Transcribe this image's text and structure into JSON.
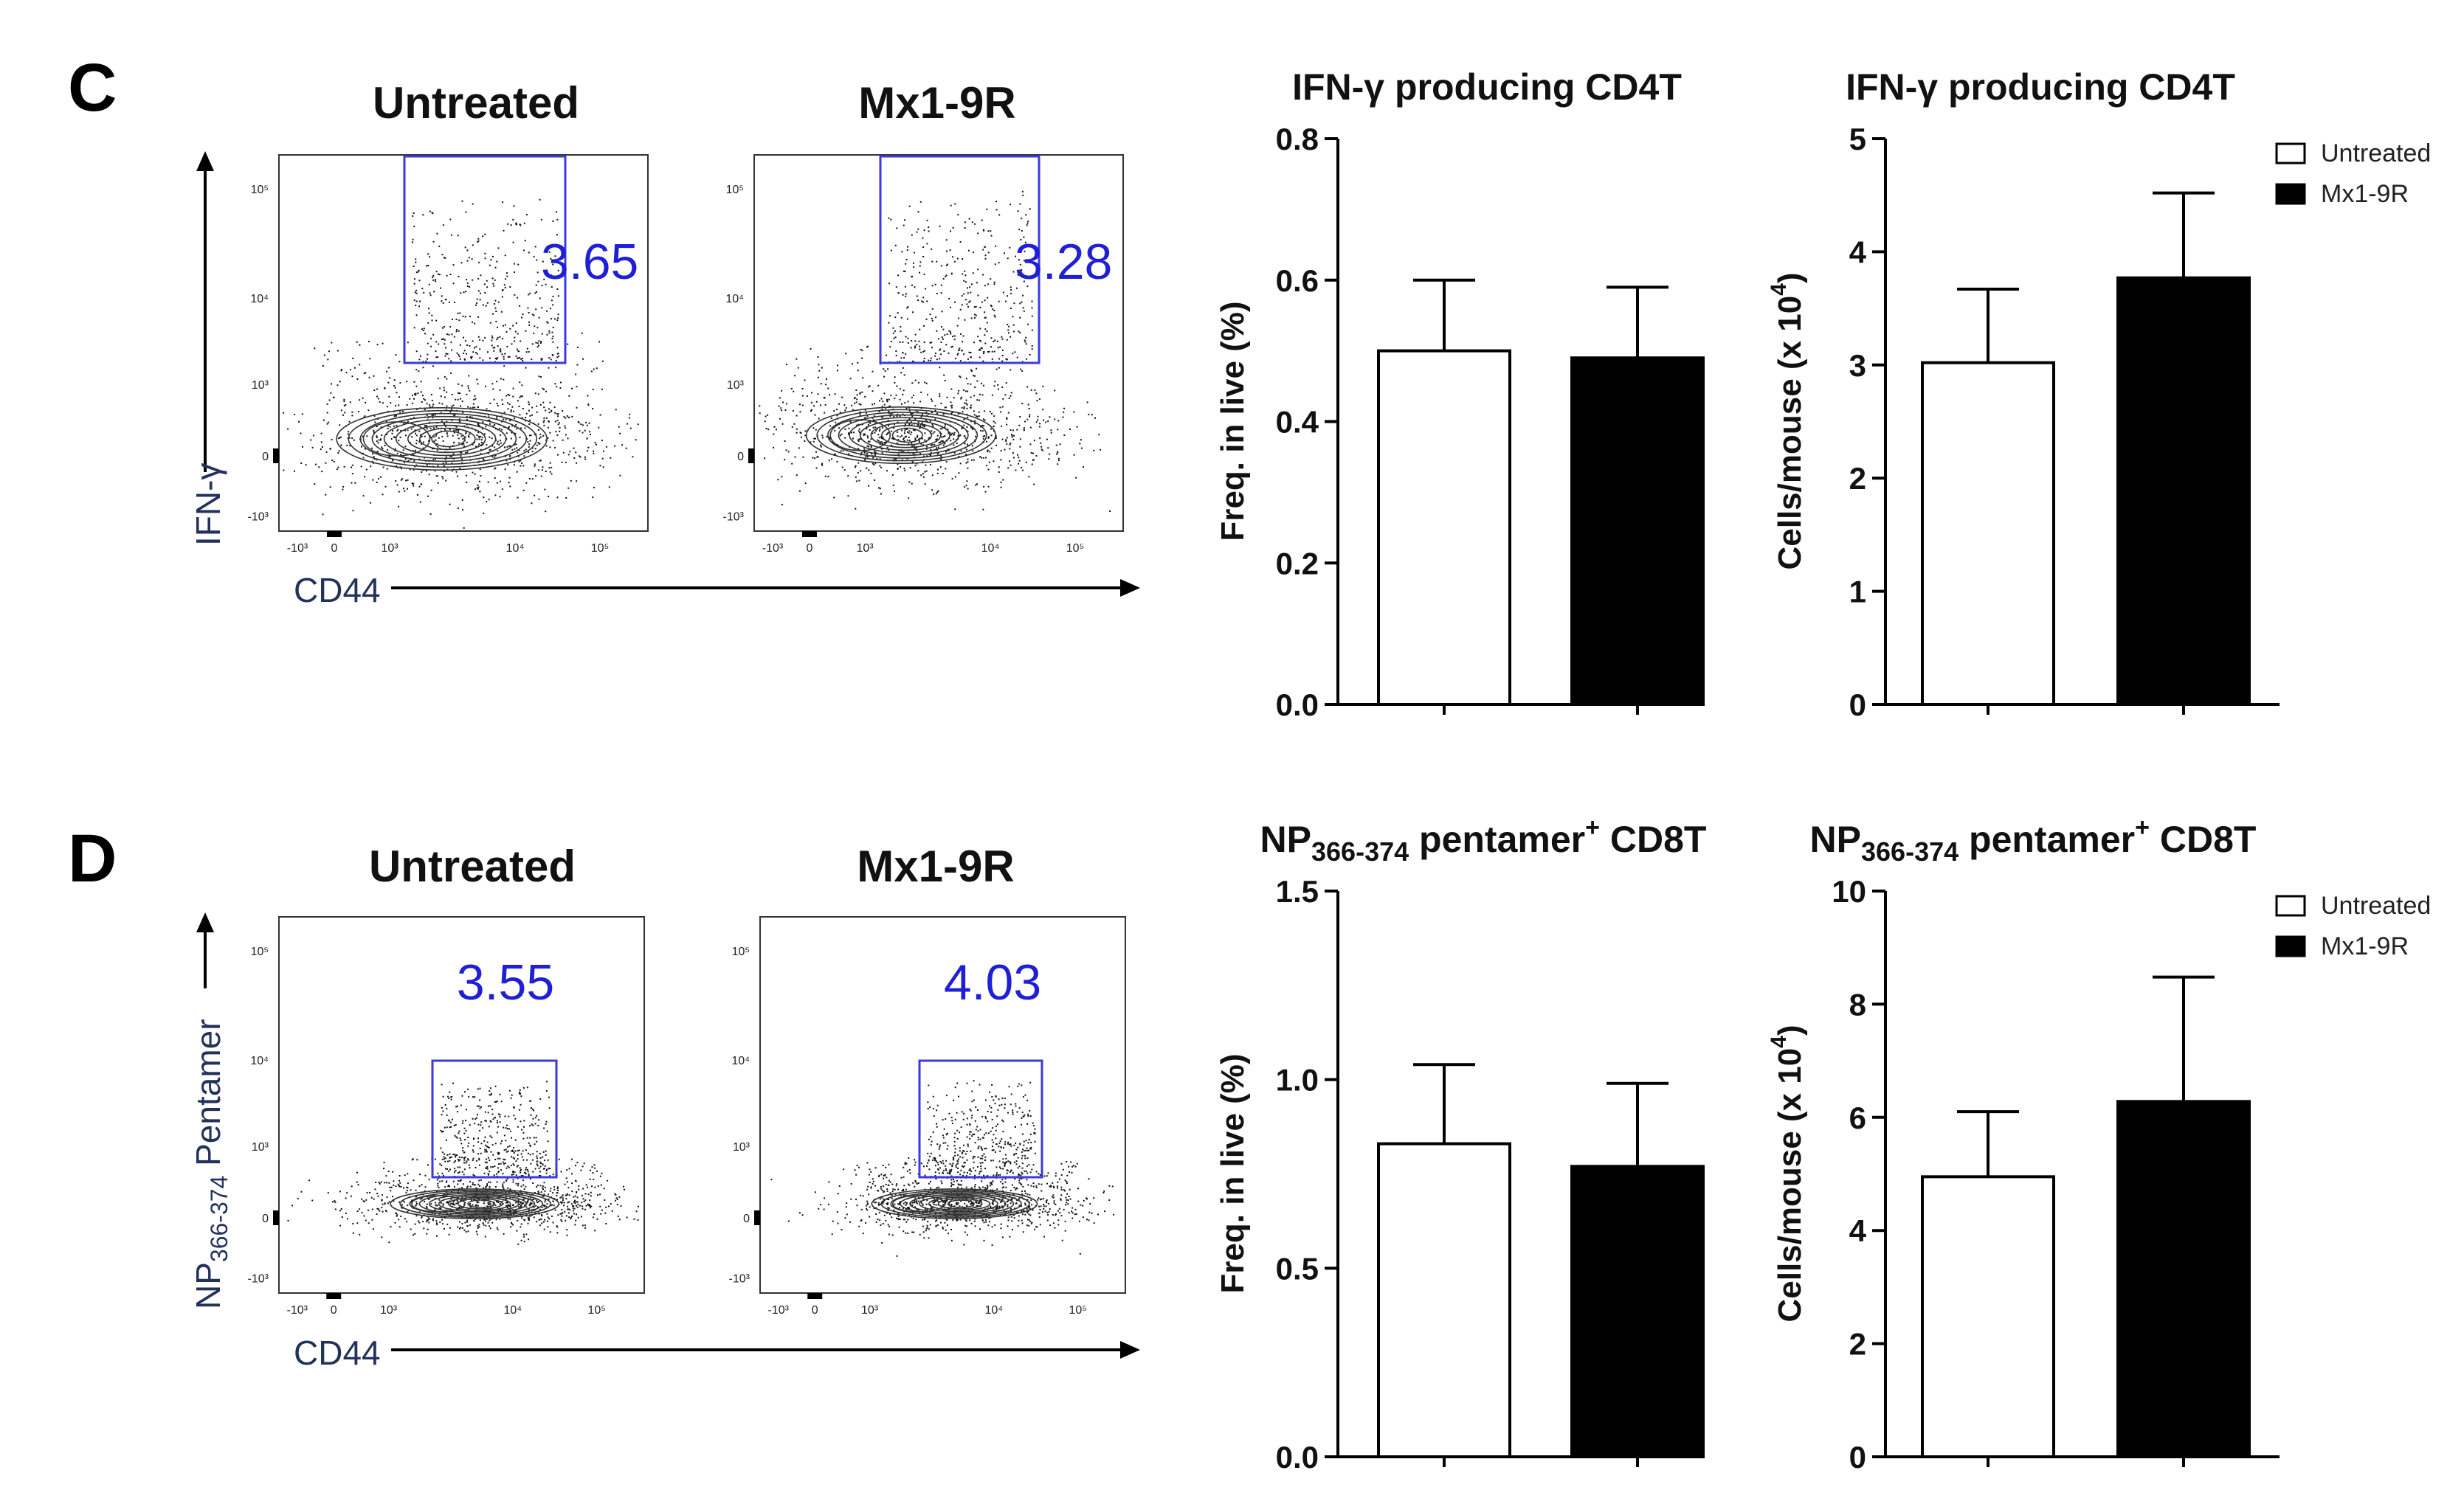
{
  "panels": [
    {
      "letter": "C",
      "flow": {
        "y_axis_label": "IFN-γ",
        "y_axis_label_parts": [
          {
            "text": "IFN-γ",
            "sub": false
          }
        ],
        "x_axis_label": "CD44",
        "tick_labels_x": [
          "-10³",
          "0",
          "10³",
          "10⁴",
          "10⁵"
        ],
        "tick_labels_y": [
          "-10³",
          "0",
          "10³",
          "10⁴",
          "10⁵"
        ],
        "plots": [
          {
            "title": "Untreated",
            "gate_value": "3.65"
          },
          {
            "title": "Mx1-9R",
            "gate_value": "3.28"
          }
        ]
      }
    },
    {
      "letter": "D",
      "flow": {
        "y_axis_label": "NP366-374 Pentamer",
        "y_axis_label_parts": [
          {
            "text": "NP",
            "sub": false
          },
          {
            "text": "366-374",
            "sub": true
          },
          {
            "text": " Pentamer",
            "sub": false
          }
        ],
        "x_axis_label": "CD44",
        "tick_labels_x": [
          "-10³",
          "0",
          "10³",
          "10⁴",
          "10⁵"
        ],
        "tick_labels_y": [
          "-10³",
          "0",
          "10³",
          "10⁴",
          "10⁵"
        ],
        "plots": [
          {
            "title": "Untreated",
            "gate_value": "3.55"
          },
          {
            "title": "Mx1-9R",
            "gate_value": "4.03"
          }
        ]
      }
    }
  ],
  "legend": {
    "entries": [
      "Untreated",
      "Mx1-9R"
    ],
    "colors": [
      "#ffffff",
      "#000000"
    ]
  },
  "chart_data": [
    {
      "type": "bar",
      "title": "IFN-γ producing CD4T",
      "title_parts": [
        {
          "text": "IFN-γ producing CD4T",
          "style": "normal"
        }
      ],
      "categories": [
        "Untreated",
        "Mx1-9R"
      ],
      "values": [
        0.5,
        0.49
      ],
      "errors": [
        0.1,
        0.1
      ],
      "ylabel": "Freq. in live (%)",
      "ylabel_parts": [
        {
          "text": "Freq. in live (%)",
          "style": "normal"
        }
      ],
      "ylim": [
        0,
        0.8
      ],
      "yticks": [
        "0.0",
        "0.2",
        "0.4",
        "0.6",
        "0.8"
      ],
      "legend": false
    },
    {
      "type": "bar",
      "title": "IFN-γ producing CD4T",
      "title_parts": [
        {
          "text": "IFN-γ producing CD4T",
          "style": "normal"
        }
      ],
      "categories": [
        "Untreated",
        "Mx1-9R"
      ],
      "values": [
        3.02,
        3.77
      ],
      "errors": [
        0.65,
        0.75
      ],
      "ylabel": "Cells/mouse (x 10⁴)",
      "ylabel_parts": [
        {
          "text": "Cells/mouse (x 10",
          "style": "normal"
        },
        {
          "text": "4",
          "style": "sup"
        },
        {
          "text": ")",
          "style": "normal"
        }
      ],
      "ylim": [
        0,
        5
      ],
      "yticks": [
        "0",
        "1",
        "2",
        "3",
        "4",
        "5"
      ],
      "legend": true
    },
    {
      "type": "bar",
      "title": "NP366-374 pentamer+ CD8T",
      "title_parts": [
        {
          "text": "NP",
          "style": "normal"
        },
        {
          "text": "366-374",
          "style": "sub"
        },
        {
          "text": " pentamer",
          "style": "normal"
        },
        {
          "text": "+",
          "style": "sup"
        },
        {
          "text": " CD8T",
          "style": "normal"
        }
      ],
      "categories": [
        "Untreated",
        "Mx1-9R"
      ],
      "values": [
        0.83,
        0.77
      ],
      "errors": [
        0.21,
        0.22
      ],
      "ylabel": "Freq. in live (%)",
      "ylabel_parts": [
        {
          "text": "Freq. in live (%)",
          "style": "normal"
        }
      ],
      "ylim": [
        0,
        1.5
      ],
      "yticks": [
        "0.0",
        "0.5",
        "1.0",
        "1.5"
      ],
      "legend": false
    },
    {
      "type": "bar",
      "title": "NP366-374 pentamer+ CD8T",
      "title_parts": [
        {
          "text": "NP",
          "style": "normal"
        },
        {
          "text": "366-374",
          "style": "sub"
        },
        {
          "text": " pentamer",
          "style": "normal"
        },
        {
          "text": "+",
          "style": "sup"
        },
        {
          "text": " CD8T",
          "style": "normal"
        }
      ],
      "categories": [
        "Untreated",
        "Mx1-9R"
      ],
      "values": [
        4.95,
        6.28
      ],
      "errors": [
        1.15,
        2.2
      ],
      "ylabel": "Cells/mouse (x 10⁴)",
      "ylabel_parts": [
        {
          "text": "Cells/mouse (x 10",
          "style": "normal"
        },
        {
          "text": "4",
          "style": "sup"
        },
        {
          "text": ")",
          "style": "normal"
        }
      ],
      "ylim": [
        0,
        10
      ],
      "yticks": [
        "0",
        "2",
        "4",
        "6",
        "8",
        "10"
      ],
      "legend": true
    }
  ]
}
